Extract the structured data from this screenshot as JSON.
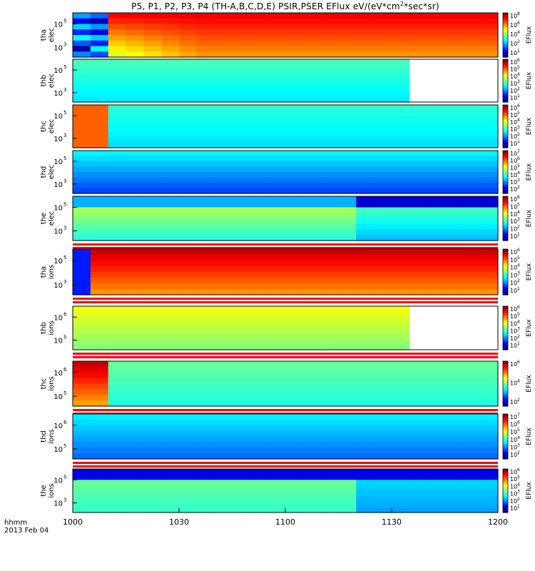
{
  "chart_data": {
    "type": "heatmap",
    "title": "P5, P1, P2, P3, P4 (TH-A,B,C,D,E) PSIR,PSER EFlux eV/(eV*cm",
    "title_sup": "2",
    "title_tail": "*sec*sr)",
    "date_label": "2013 Feb 04",
    "time_format_label": "hhmm",
    "x_ticks": [
      "1000",
      "1030",
      "1100",
      "1130",
      "1200"
    ],
    "colorbar_label": "EFlux",
    "panels": [
      {
        "ylabel": [
          "tha",
          "elec"
        ],
        "ytick_exps": [
          "5",
          "3"
        ],
        "cb_exps": [
          "8",
          "6",
          "4",
          "2",
          "1"
        ],
        "cb_mant": [
          "10",
          "10",
          "10",
          "10",
          "10"
        ],
        "ylim_hint": "eV"
      },
      {
        "ylabel": [
          "thb",
          "elec"
        ],
        "ytick_exps": [
          "5",
          "3"
        ],
        "cb_exps": [
          "6",
          "5",
          "4",
          "3",
          "2",
          "1"
        ],
        "cb_mant": [
          "10",
          "10",
          "10",
          "10",
          "10",
          "10"
        ]
      },
      {
        "ylabel": [
          "thc",
          "elec"
        ],
        "ytick_exps": [
          "5",
          "3"
        ],
        "cb_exps": [
          "6",
          "5",
          "4",
          "3",
          "2",
          "1"
        ],
        "cb_mant": [
          "10",
          "10",
          "10",
          "10",
          "10",
          "10"
        ]
      },
      {
        "ylabel": [
          "thd",
          "elec"
        ],
        "ytick_exps": [
          "5",
          "3"
        ],
        "cb_exps": [
          "7",
          "6",
          "5",
          "4",
          "3",
          "2"
        ],
        "cb_mant": [
          "10",
          "10",
          "10",
          "10",
          "10",
          "10"
        ]
      },
      {
        "ylabel": [
          "the",
          "elec"
        ],
        "ytick_exps": [
          "5",
          "3"
        ],
        "cb_exps": [
          "6",
          "5",
          "4",
          "3",
          "2",
          "1"
        ],
        "cb_mant": [
          "10",
          "10",
          "10",
          "10",
          "10",
          "10"
        ]
      },
      {
        "ylabel": [
          "tha",
          "ions"
        ],
        "ytick_exps": [
          "5",
          "3"
        ],
        "cb_exps": [
          "6",
          "5",
          "4",
          "3",
          "2",
          "1"
        ],
        "cb_mant": [
          "10",
          "10",
          "10",
          "10",
          "10",
          "10"
        ]
      },
      {
        "ylabel": [
          "thb",
          "ions"
        ],
        "ytick_exps": [
          "6",
          "5"
        ],
        "cb_exps": [
          "6",
          "5",
          "4",
          "3",
          "2",
          "1"
        ],
        "cb_mant": [
          "10",
          "10",
          "10",
          "10",
          "10",
          "10"
        ]
      },
      {
        "ylabel": [
          "thc",
          "ions"
        ],
        "ytick_exps": [
          "6",
          "5"
        ],
        "cb_exps": [
          "6",
          "4",
          "2"
        ],
        "cb_mant": [
          "10",
          "10",
          "10"
        ]
      },
      {
        "ylabel": [
          "thd",
          "ions"
        ],
        "ytick_exps": [
          "6",
          "5"
        ],
        "cb_exps": [
          "7",
          "6",
          "5",
          "4",
          "3",
          "2"
        ],
        "cb_mant": [
          "10",
          "10",
          "10",
          "10",
          "10",
          "10"
        ]
      },
      {
        "ylabel": [
          "the",
          "ions"
        ],
        "ytick_exps": [
          "5",
          "3"
        ],
        "cb_exps": [
          "6",
          "5",
          "4",
          "3",
          "2",
          "1"
        ],
        "cb_mant": [
          "10",
          "10",
          "10",
          "10",
          "10",
          "10"
        ]
      }
    ]
  }
}
